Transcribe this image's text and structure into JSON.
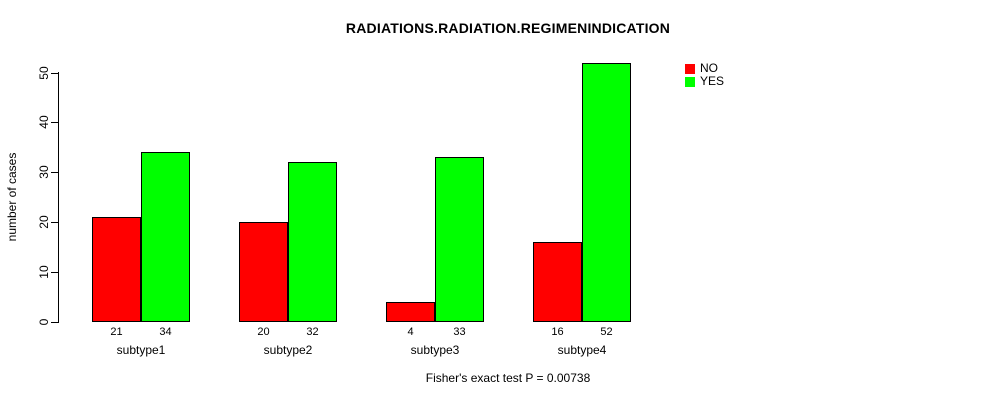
{
  "chart_data": {
    "type": "bar",
    "title": "RADIATIONS.RADIATION.REGIMENINDICATION",
    "ylabel": "number of cases",
    "xlabel": "",
    "categories": [
      "subtype1",
      "subtype2",
      "subtype3",
      "subtype4"
    ],
    "series": [
      {
        "name": "NO",
        "color": "#ff0000",
        "values": [
          21,
          20,
          4,
          16
        ]
      },
      {
        "name": "YES",
        "color": "#00ff00",
        "values": [
          34,
          32,
          33,
          52
        ]
      }
    ],
    "value_labels_shown": true,
    "yticks": [
      0,
      10,
      20,
      30,
      40,
      50
    ],
    "ylim": [
      0,
      50
    ],
    "grid": false,
    "legend_position": "top-right",
    "caption": "Fisher's exact test P = 0.00738"
  }
}
